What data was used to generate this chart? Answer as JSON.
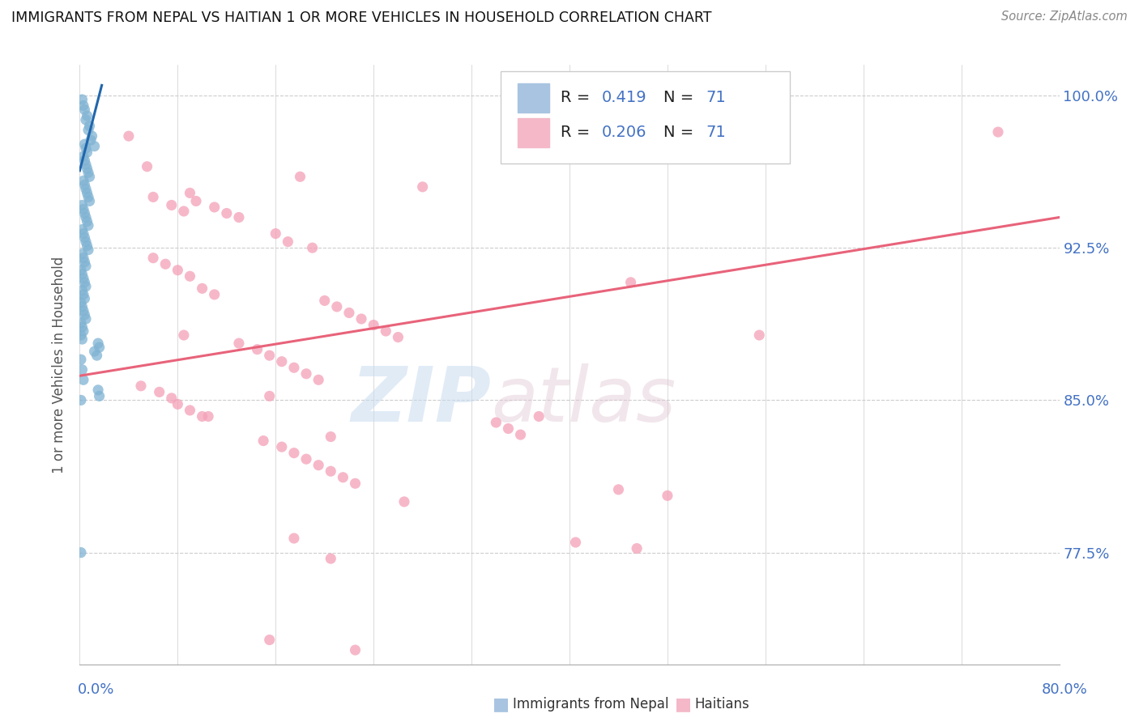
{
  "title": "IMMIGRANTS FROM NEPAL VS HAITIAN 1 OR MORE VEHICLES IN HOUSEHOLD CORRELATION CHART",
  "source": "Source: ZipAtlas.com",
  "ylabel": "1 or more Vehicles in Household",
  "nepal_color": "#7fb3d3",
  "nepal_edge_color": "#7fb3d3",
  "haitian_color": "#f4a0b8",
  "haitian_edge_color": "#f4a0b8",
  "nepal_line_color": "#2166ac",
  "haitian_line_color": "#e8637a",
  "watermark_zip": "ZIP",
  "watermark_atlas": "atlas",
  "nepal_scatter": [
    [
      0.002,
      0.998
    ],
    [
      0.008,
      0.985
    ],
    [
      0.01,
      0.98
    ],
    [
      0.012,
      0.975
    ],
    [
      0.006,
      0.99
    ],
    [
      0.004,
      0.993
    ],
    [
      0.003,
      0.995
    ],
    [
      0.005,
      0.988
    ],
    [
      0.007,
      0.983
    ],
    [
      0.009,
      0.978
    ],
    [
      0.004,
      0.976
    ],
    [
      0.005,
      0.974
    ],
    [
      0.006,
      0.972
    ],
    [
      0.003,
      0.97
    ],
    [
      0.004,
      0.968
    ],
    [
      0.005,
      0.966
    ],
    [
      0.006,
      0.964
    ],
    [
      0.007,
      0.962
    ],
    [
      0.008,
      0.96
    ],
    [
      0.003,
      0.958
    ],
    [
      0.004,
      0.956
    ],
    [
      0.005,
      0.954
    ],
    [
      0.006,
      0.952
    ],
    [
      0.007,
      0.95
    ],
    [
      0.008,
      0.948
    ],
    [
      0.002,
      0.946
    ],
    [
      0.003,
      0.944
    ],
    [
      0.004,
      0.942
    ],
    [
      0.005,
      0.94
    ],
    [
      0.006,
      0.938
    ],
    [
      0.007,
      0.936
    ],
    [
      0.002,
      0.934
    ],
    [
      0.003,
      0.932
    ],
    [
      0.004,
      0.93
    ],
    [
      0.005,
      0.928
    ],
    [
      0.006,
      0.926
    ],
    [
      0.007,
      0.924
    ],
    [
      0.002,
      0.922
    ],
    [
      0.003,
      0.92
    ],
    [
      0.004,
      0.918
    ],
    [
      0.005,
      0.916
    ],
    [
      0.001,
      0.914
    ],
    [
      0.002,
      0.912
    ],
    [
      0.003,
      0.91
    ],
    [
      0.004,
      0.908
    ],
    [
      0.005,
      0.906
    ],
    [
      0.002,
      0.904
    ],
    [
      0.003,
      0.902
    ],
    [
      0.004,
      0.9
    ],
    [
      0.001,
      0.898
    ],
    [
      0.002,
      0.896
    ],
    [
      0.003,
      0.894
    ],
    [
      0.004,
      0.892
    ],
    [
      0.005,
      0.89
    ],
    [
      0.001,
      0.888
    ],
    [
      0.002,
      0.886
    ],
    [
      0.003,
      0.884
    ],
    [
      0.001,
      0.882
    ],
    [
      0.002,
      0.88
    ],
    [
      0.015,
      0.878
    ],
    [
      0.016,
      0.876
    ],
    [
      0.012,
      0.874
    ],
    [
      0.014,
      0.872
    ],
    [
      0.001,
      0.87
    ],
    [
      0.002,
      0.865
    ],
    [
      0.003,
      0.86
    ],
    [
      0.015,
      0.855
    ],
    [
      0.016,
      0.852
    ],
    [
      0.001,
      0.85
    ],
    [
      0.001,
      0.775
    ]
  ],
  "haitian_scatter": [
    [
      0.04,
      0.98
    ],
    [
      0.75,
      0.982
    ],
    [
      0.18,
      0.96
    ],
    [
      0.28,
      0.955
    ],
    [
      0.09,
      0.952
    ],
    [
      0.095,
      0.948
    ],
    [
      0.11,
      0.945
    ],
    [
      0.12,
      0.942
    ],
    [
      0.13,
      0.94
    ],
    [
      0.055,
      0.965
    ],
    [
      0.16,
      0.932
    ],
    [
      0.17,
      0.928
    ],
    [
      0.06,
      0.95
    ],
    [
      0.075,
      0.946
    ],
    [
      0.085,
      0.943
    ],
    [
      0.19,
      0.925
    ],
    [
      0.06,
      0.92
    ],
    [
      0.07,
      0.917
    ],
    [
      0.08,
      0.914
    ],
    [
      0.09,
      0.911
    ],
    [
      0.45,
      0.908
    ],
    [
      0.1,
      0.905
    ],
    [
      0.11,
      0.902
    ],
    [
      0.2,
      0.899
    ],
    [
      0.21,
      0.896
    ],
    [
      0.22,
      0.893
    ],
    [
      0.23,
      0.89
    ],
    [
      0.24,
      0.887
    ],
    [
      0.25,
      0.884
    ],
    [
      0.26,
      0.881
    ],
    [
      0.13,
      0.878
    ],
    [
      0.145,
      0.875
    ],
    [
      0.155,
      0.872
    ],
    [
      0.165,
      0.869
    ],
    [
      0.175,
      0.866
    ],
    [
      0.185,
      0.863
    ],
    [
      0.195,
      0.86
    ],
    [
      0.05,
      0.857
    ],
    [
      0.065,
      0.854
    ],
    [
      0.075,
      0.851
    ],
    [
      0.08,
      0.848
    ],
    [
      0.09,
      0.845
    ],
    [
      0.1,
      0.842
    ],
    [
      0.34,
      0.839
    ],
    [
      0.35,
      0.836
    ],
    [
      0.36,
      0.833
    ],
    [
      0.15,
      0.83
    ],
    [
      0.165,
      0.827
    ],
    [
      0.175,
      0.824
    ],
    [
      0.185,
      0.821
    ],
    [
      0.195,
      0.818
    ],
    [
      0.205,
      0.815
    ],
    [
      0.215,
      0.812
    ],
    [
      0.225,
      0.809
    ],
    [
      0.44,
      0.806
    ],
    [
      0.48,
      0.803
    ],
    [
      0.265,
      0.8
    ],
    [
      0.155,
      0.852
    ],
    [
      0.205,
      0.832
    ],
    [
      0.175,
      0.782
    ],
    [
      0.205,
      0.772
    ],
    [
      0.405,
      0.78
    ],
    [
      0.455,
      0.777
    ],
    [
      0.375,
      0.842
    ],
    [
      0.155,
      0.732
    ],
    [
      0.225,
      0.727
    ],
    [
      0.105,
      0.842
    ],
    [
      0.555,
      0.882
    ],
    [
      0.085,
      0.882
    ]
  ],
  "nepal_line": {
    "x0": 0.0,
    "y0": 0.963,
    "x1": 0.018,
    "y1": 1.005
  },
  "haitian_line": {
    "x0": 0.0,
    "y0": 0.862,
    "x1": 0.8,
    "y1": 0.94
  },
  "xlim": [
    0.0,
    0.8
  ],
  "ylim": [
    0.72,
    1.015
  ],
  "yticks": [
    0.775,
    0.85,
    0.925,
    1.0
  ],
  "ytick_labels": [
    "77.5%",
    "85.0%",
    "92.5%",
    "100.0%"
  ],
  "xtick_left_label": "0.0%",
  "xtick_right_label": "80.0%",
  "legend_r1": "0.419",
  "legend_r2": "0.206",
  "legend_n": "71"
}
